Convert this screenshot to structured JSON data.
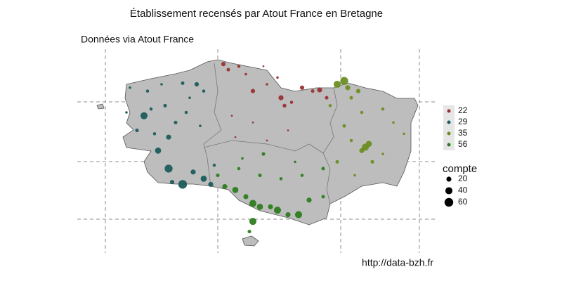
{
  "chart_data": {
    "type": "bubble-map",
    "title": "Établissement recensés par Atout France en Bretagne",
    "subtitle": "Données via Atout France",
    "source": "http://data-bzh.fr",
    "series": [
      {
        "name": "22",
        "color": "#993333",
        "x": [
          -3.32,
          -3.25,
          -3.1,
          -3.0,
          -2.9,
          -2.7,
          -2.5,
          -2.45,
          -2.35,
          -2.2,
          -2.05,
          -1.95,
          -1.85,
          -3.15,
          -2.7,
          -2.4,
          -2.9,
          -3.2,
          -2.55,
          -2.75
        ],
        "y": [
          48.83,
          48.78,
          48.81,
          48.74,
          48.59,
          48.65,
          48.53,
          48.46,
          48.49,
          48.62,
          48.59,
          48.6,
          48.53,
          48.18,
          48.15,
          48.24,
          48.31,
          48.37,
          48.71,
          48.81
        ],
        "size": [
          15,
          10,
          8,
          5,
          15,
          5,
          20,
          12,
          8,
          15,
          10,
          20,
          10,
          3,
          3,
          3,
          3,
          3,
          5,
          3
        ]
      },
      {
        "name": "29",
        "color": "#1d5c5c",
        "x": [
          -4.65,
          -4.4,
          -4.2,
          -3.9,
          -3.7,
          -3.6,
          -3.8,
          -4.45,
          -4.35,
          -4.15,
          -4.0,
          -3.85,
          -4.1,
          -4.25,
          -4.1,
          -3.9,
          -4.05,
          -3.75,
          -3.6,
          -3.5,
          -3.45,
          -4.55,
          -4.3,
          -3.65,
          -4.7
        ],
        "y": [
          48.62,
          48.59,
          48.65,
          48.66,
          48.65,
          48.59,
          48.53,
          48.37,
          48.43,
          48.46,
          48.31,
          48.4,
          48.18,
          48.06,
          47.9,
          47.76,
          47.78,
          47.87,
          47.81,
          47.76,
          47.93,
          48.24,
          48.21,
          48.28,
          48.4
        ],
        "size": [
          5,
          8,
          5,
          10,
          15,
          8,
          5,
          40,
          8,
          10,
          10,
          8,
          20,
          30,
          50,
          60,
          15,
          20,
          30,
          20,
          8,
          10,
          8,
          5,
          5
        ]
      },
      {
        "name": "35",
        "color": "#6b8e23",
        "x": [
          -1.7,
          -1.6,
          -1.55,
          -1.5,
          -1.4,
          -1.35,
          -1.3,
          -1.25,
          -1.35,
          -1.2,
          -1.05,
          -0.9,
          -0.75,
          -1.6,
          -1.5,
          -1.7,
          -1.45,
          -1.05,
          -1.8
        ],
        "y": [
          48.65,
          48.68,
          48.62,
          48.53,
          48.59,
          48.4,
          48.09,
          48.12,
          48.06,
          47.96,
          48.43,
          48.31,
          48.21,
          48.28,
          48.15,
          47.96,
          47.84,
          48.03,
          48.46
        ],
        "size": [
          40,
          50,
          20,
          10,
          15,
          8,
          40,
          30,
          20,
          10,
          8,
          5,
          5,
          10,
          8,
          10,
          5,
          5,
          8
        ]
      },
      {
        "name": "56",
        "color": "#2e7d1f",
        "x": [
          -3.3,
          -3.15,
          -3.0,
          -2.9,
          -2.8,
          -2.65,
          -2.55,
          -2.4,
          -2.25,
          -2.9,
          -2.95,
          -2.1,
          -1.9,
          -1.9,
          -2.2,
          -2.5,
          -2.8,
          -3.1,
          -2.75,
          -2.3,
          -3.05,
          -3.4
        ],
        "y": [
          47.74,
          47.71,
          47.65,
          47.59,
          47.56,
          47.56,
          47.53,
          47.49,
          47.49,
          47.43,
          47.34,
          47.62,
          47.65,
          47.9,
          47.84,
          47.81,
          47.84,
          47.9,
          48.03,
          47.96,
          47.99,
          47.84
        ],
        "size": [
          20,
          30,
          20,
          40,
          30,
          20,
          40,
          20,
          40,
          40,
          10,
          20,
          10,
          10,
          8,
          8,
          10,
          8,
          10,
          5,
          5,
          10
        ]
      }
    ],
    "size_legend": {
      "title": "compte",
      "values": [
        20,
        40,
        60
      ]
    }
  }
}
